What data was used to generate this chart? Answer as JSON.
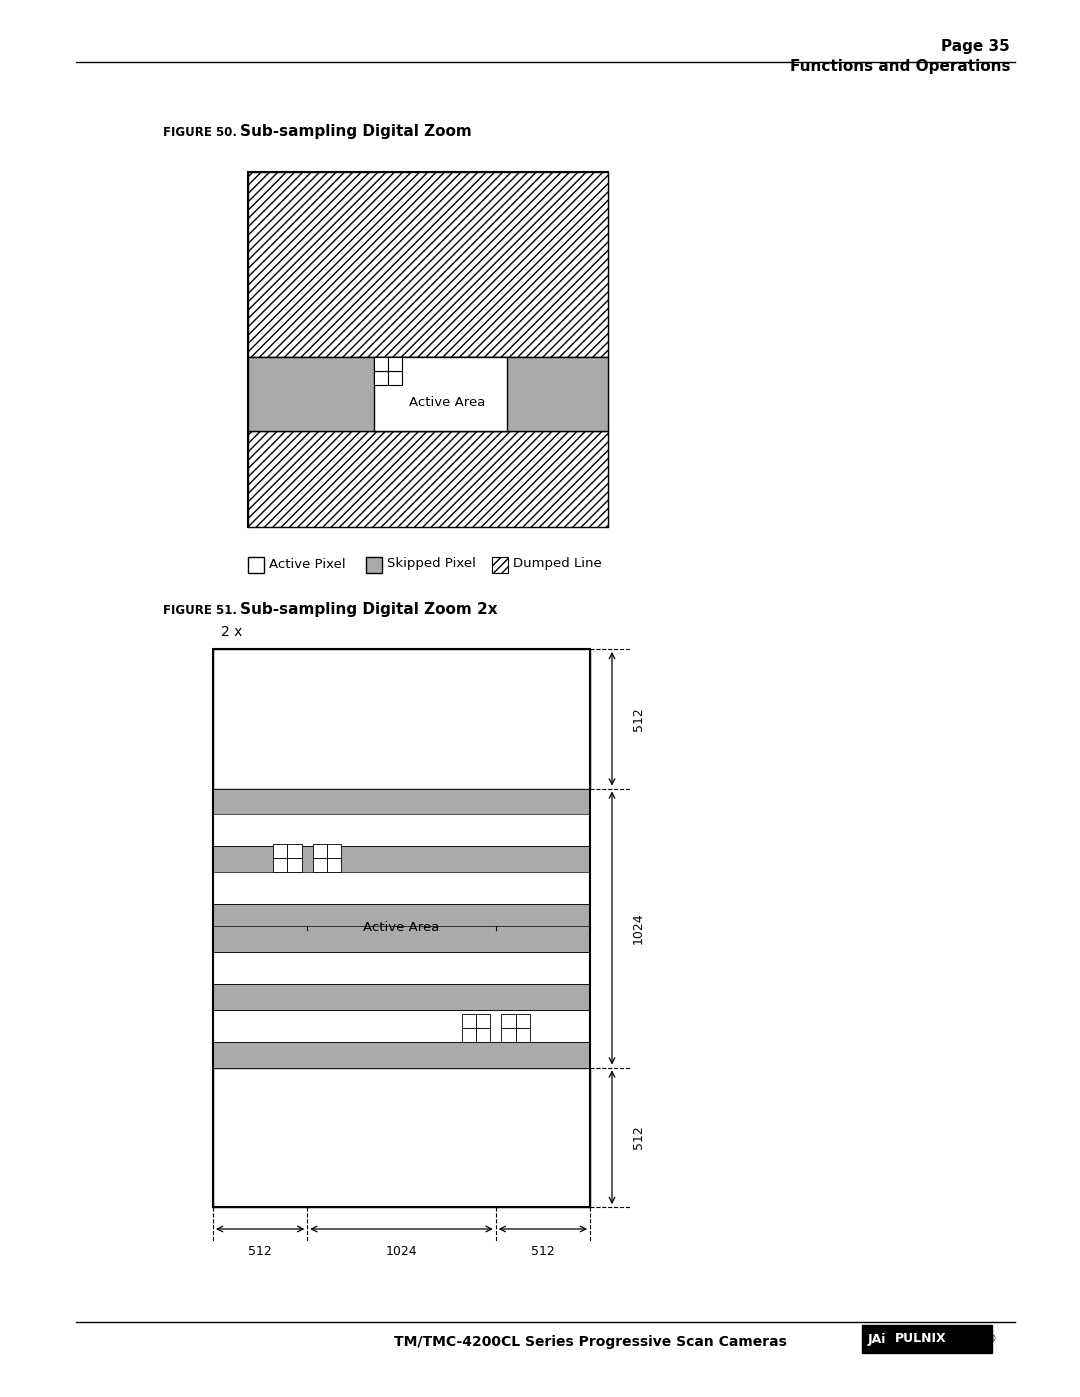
{
  "page_header_right": "Page 35",
  "section_header_right": "Functions and Operations",
  "footer_text": "TM/TMC-4200CL Series Progressive Scan Cameras",
  "fig50_label": "FIGURE 50.",
  "fig50_title": "Sub-sampling Digital Zoom",
  "fig51_label": "FIGURE 51.",
  "fig51_title": "Sub-sampling Digital Zoom 2x",
  "legend_active": "Active Pixel",
  "legend_skipped": "Skipped Pixel",
  "legend_dumped": "Dumped Line",
  "gray_color": "#aaaaaa",
  "white_color": "#ffffff",
  "bg_color": "#ffffff",
  "label_2x": "2 x",
  "label_active_area": "Active Area",
  "dim_512": "512",
  "dim_1024": "1024"
}
